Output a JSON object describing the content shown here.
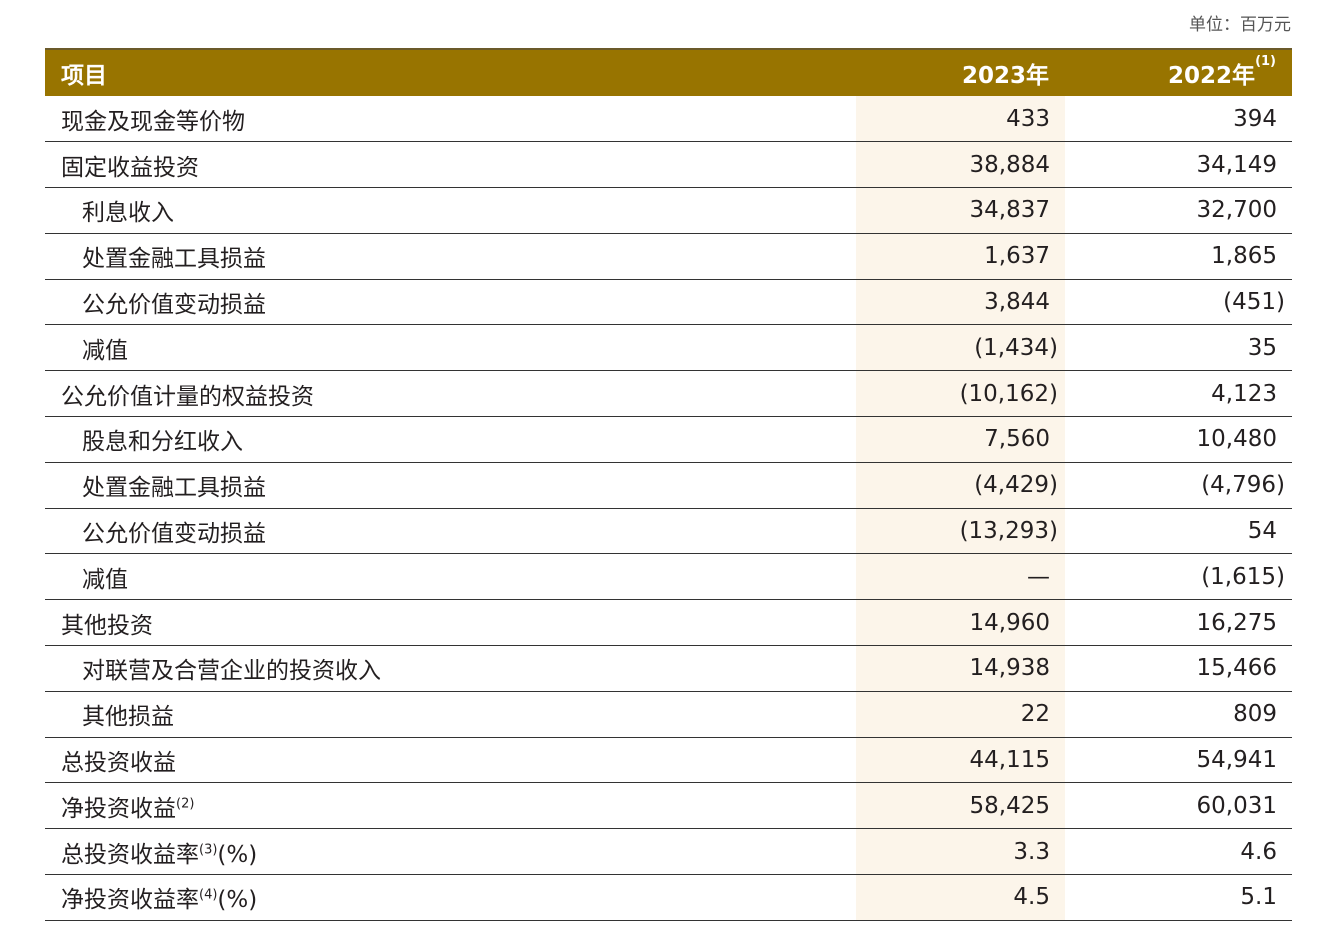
{
  "unit": "单位：百万元",
  "header": {
    "item": "项目",
    "y2023": "2023年",
    "y2022": "2022年",
    "y2022_note": "(1)"
  },
  "rows": [
    {
      "label": "现金及现金等价物",
      "note": "",
      "suffix": "",
      "level": 0,
      "v2023": "433",
      "v2022": "394"
    },
    {
      "label": "固定收益投资",
      "note": "",
      "suffix": "",
      "level": 0,
      "v2023": "38,884",
      "v2022": "34,149"
    },
    {
      "label": "利息收入",
      "note": "",
      "suffix": "",
      "level": 1,
      "v2023": "34,837",
      "v2022": "32,700"
    },
    {
      "label": "处置金融工具损益",
      "note": "",
      "suffix": "",
      "level": 1,
      "v2023": "1,637",
      "v2022": "1,865"
    },
    {
      "label": "公允价值变动损益",
      "note": "",
      "suffix": "",
      "level": 1,
      "v2023": "3,844",
      "v2022": "(451)"
    },
    {
      "label": "减值",
      "note": "",
      "suffix": "",
      "level": 1,
      "v2023": "(1,434)",
      "v2022": "35"
    },
    {
      "label": "公允价值计量的权益投资",
      "note": "",
      "suffix": "",
      "level": 0,
      "v2023": "(10,162)",
      "v2022": "4,123"
    },
    {
      "label": "股息和分红收入",
      "note": "",
      "suffix": "",
      "level": 1,
      "v2023": "7,560",
      "v2022": "10,480"
    },
    {
      "label": "处置金融工具损益",
      "note": "",
      "suffix": "",
      "level": 1,
      "v2023": "(4,429)",
      "v2022": "(4,796)"
    },
    {
      "label": "公允价值变动损益",
      "note": "",
      "suffix": "",
      "level": 1,
      "v2023": "(13,293)",
      "v2022": "54"
    },
    {
      "label": "减值",
      "note": "",
      "suffix": "",
      "level": 1,
      "v2023": "—",
      "v2022": "(1,615)"
    },
    {
      "label": "其他投资",
      "note": "",
      "suffix": "",
      "level": 0,
      "v2023": "14,960",
      "v2022": "16,275"
    },
    {
      "label": "对联营及合营企业的投资收入",
      "note": "",
      "suffix": "",
      "level": 1,
      "v2023": "14,938",
      "v2022": "15,466"
    },
    {
      "label": "其他损益",
      "note": "",
      "suffix": "",
      "level": 1,
      "v2023": "22",
      "v2022": "809"
    },
    {
      "label": "总投资收益",
      "note": "",
      "suffix": "",
      "level": 0,
      "v2023": "44,115",
      "v2022": "54,941"
    },
    {
      "label": "净投资收益",
      "note": "(2)",
      "suffix": "",
      "level": 0,
      "v2023": "58,425",
      "v2022": "60,031"
    },
    {
      "label": "总投资收益率",
      "note": "(3)",
      "suffix": "(%)",
      "level": 0,
      "v2023": "3.3",
      "v2022": "4.6"
    },
    {
      "label": "净投资收益率",
      "note": "(4)",
      "suffix": "(%)",
      "level": 0,
      "v2023": "4.5",
      "v2022": "5.1"
    }
  ],
  "colors": {
    "header_bg": "#987400",
    "highlight_col": "#fcf5ea"
  }
}
